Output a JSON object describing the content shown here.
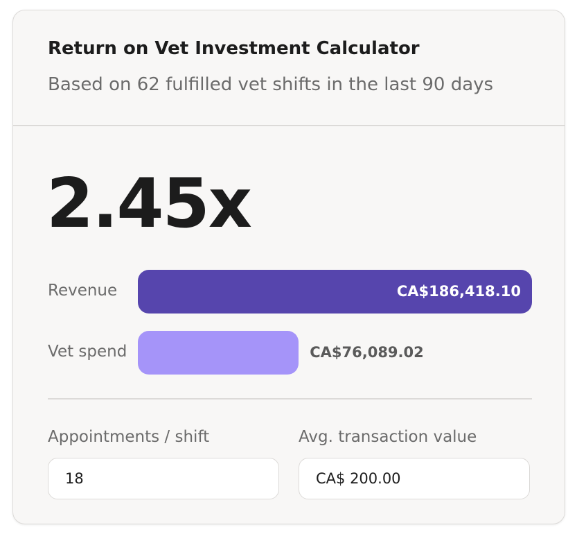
{
  "header": {
    "title": "Return on Vet Investment Calculator",
    "subtitle": "Based on 62 fulfilled vet shifts in the last 90 days"
  },
  "ratio": "2.45x",
  "bars": [
    {
      "label": "Revenue",
      "value": 186418.1,
      "value_label": "CA$186,418.10",
      "color": "#5645ad",
      "label_inside": true
    },
    {
      "label": "Vet spend",
      "value": 76089.02,
      "value_label": "CA$76,089.02",
      "color": "#a594f9",
      "label_inside": false
    }
  ],
  "inputs": [
    {
      "label": "Appointments / shift",
      "value": "18"
    },
    {
      "label": "Avg. transaction value",
      "value": "CA$ 200.00"
    }
  ]
}
